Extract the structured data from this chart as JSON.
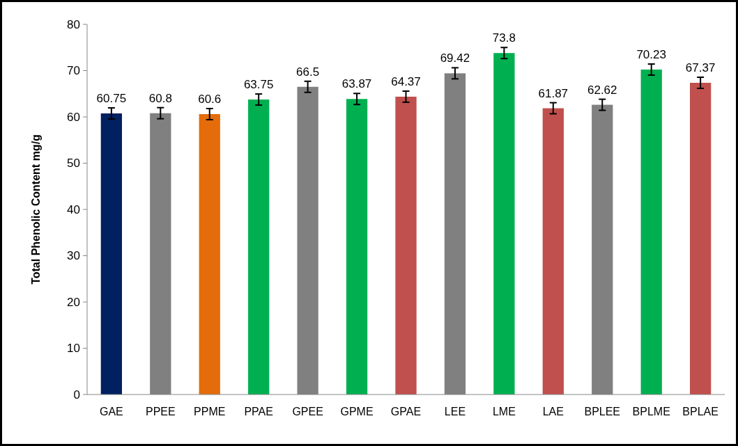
{
  "chart_data": {
    "type": "bar",
    "ylabel": "Total Phenolic Content mg/g",
    "categories": [
      "GAE",
      "PPEE",
      "PPME",
      "PPAE",
      "GPEE",
      "GPME",
      "GPAE",
      "LEE",
      "LME",
      "LAE",
      "BPLEE",
      "BPLME",
      "BPLAE"
    ],
    "values": [
      60.75,
      60.8,
      60.6,
      63.75,
      66.5,
      63.87,
      64.37,
      69.42,
      73.8,
      61.87,
      62.62,
      70.23,
      67.37
    ],
    "colors": [
      "#002060",
      "#808080",
      "#e46c0a",
      "#00b050",
      "#808080",
      "#00b050",
      "#c0504d",
      "#808080",
      "#00b050",
      "#c0504d",
      "#808080",
      "#00b050",
      "#c0504d"
    ],
    "errors": [
      1.2,
      1.2,
      1.2,
      1.2,
      1.2,
      1.2,
      1.2,
      1.2,
      1.2,
      1.2,
      1.2,
      1.2,
      1.2
    ],
    "data_labels": true,
    "ylim": [
      0,
      80
    ],
    "yticks": [
      0,
      10,
      20,
      30,
      40,
      50,
      60,
      70,
      80
    ],
    "grid": false
  }
}
